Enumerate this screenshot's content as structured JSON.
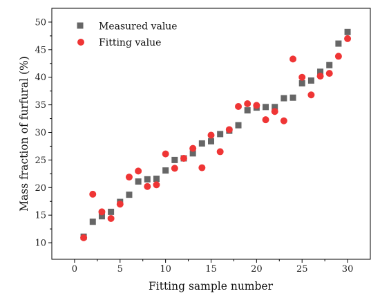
{
  "chart_data": {
    "type": "scatter",
    "xlabel": "Fitting sample number",
    "ylabel": "Mass fraction of furfural (%)",
    "xlim": [
      -2.5,
      32.5
    ],
    "ylim": [
      7.0,
      52.5
    ],
    "x_ticks": [
      0,
      5,
      10,
      15,
      20,
      25,
      30
    ],
    "y_ticks": [
      10,
      15,
      20,
      25,
      30,
      35,
      40,
      45,
      50
    ],
    "grid": false,
    "legend_position": "top-left",
    "series": [
      {
        "name": "Measured value",
        "marker": "square",
        "color": "#666666",
        "x": [
          1,
          2,
          3,
          4,
          5,
          6,
          7,
          8,
          9,
          10,
          11,
          12,
          13,
          14,
          15,
          16,
          17,
          18,
          19,
          20,
          21,
          22,
          23,
          24,
          25,
          26,
          27,
          28,
          29,
          30
        ],
        "y": [
          11.1,
          13.8,
          14.8,
          15.6,
          17.4,
          18.7,
          21.1,
          21.5,
          21.6,
          23.1,
          25.0,
          25.3,
          26.2,
          28.0,
          28.4,
          29.7,
          30.3,
          31.3,
          34.0,
          34.5,
          34.6,
          34.6,
          36.2,
          36.3,
          38.9,
          39.4,
          41.0,
          42.2,
          46.1,
          48.2
        ]
      },
      {
        "name": "Fitting value",
        "marker": "circle",
        "color": "#ef3535",
        "x": [
          1,
          2,
          3,
          4,
          5,
          6,
          7,
          8,
          9,
          10,
          11,
          12,
          13,
          14,
          15,
          16,
          17,
          18,
          19,
          20,
          21,
          22,
          23,
          24,
          25,
          26,
          27,
          28,
          29,
          30
        ],
        "y": [
          10.9,
          18.8,
          15.6,
          14.4,
          17.0,
          21.9,
          23.0,
          20.2,
          20.5,
          26.1,
          23.5,
          25.3,
          27.1,
          23.6,
          29.5,
          26.5,
          30.5,
          34.7,
          35.2,
          34.9,
          32.3,
          33.8,
          32.1,
          43.3,
          40.0,
          36.8,
          40.2,
          40.7,
          43.8,
          47.0
        ]
      }
    ]
  }
}
